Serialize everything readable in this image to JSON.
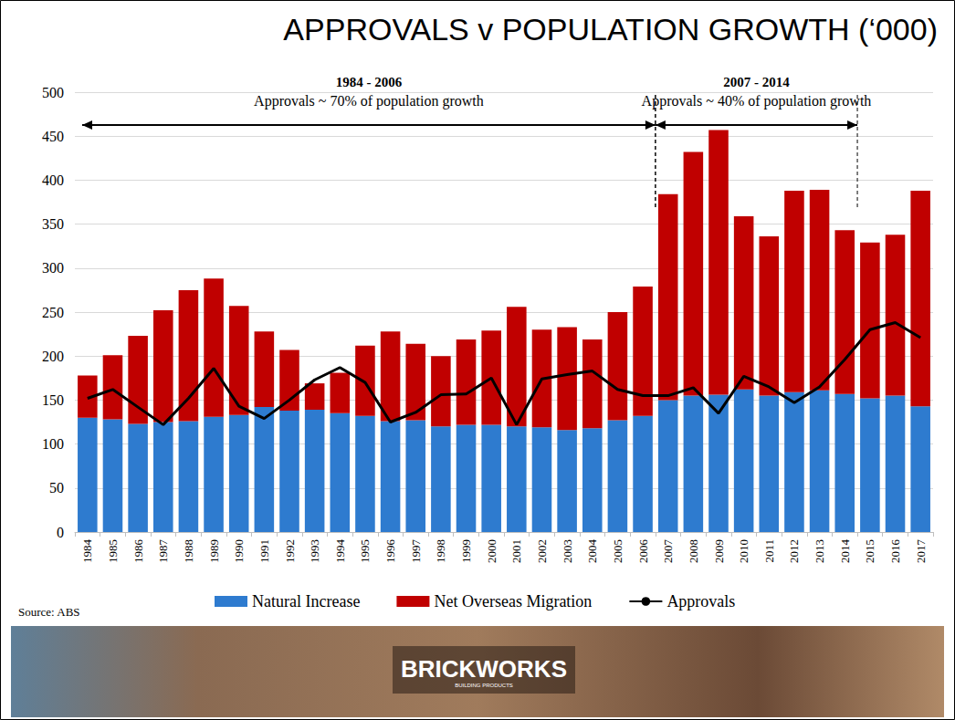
{
  "chart_data": {
    "type": "bar",
    "title": "APPROVALS v POPULATION GROWTH (‘000)",
    "categories": [
      "1984",
      "1985",
      "1986",
      "1987",
      "1988",
      "1989",
      "1990",
      "1991",
      "1992",
      "1993",
      "1994",
      "1995",
      "1996",
      "1997",
      "1998",
      "1999",
      "2000",
      "2001",
      "2002",
      "2003",
      "2004",
      "2005",
      "2006",
      "2007",
      "2008",
      "2009",
      "2010",
      "2011",
      "2012",
      "2013",
      "2014",
      "2015",
      "2016",
      "2017"
    ],
    "series": [
      {
        "name": "Natural Increase",
        "type": "bar",
        "color": "#2e7bcf",
        "values": [
          130,
          128,
          123,
          125,
          126,
          131,
          133,
          142,
          138,
          139,
          135,
          132,
          126,
          127,
          120,
          122,
          122,
          120,
          119,
          116,
          118,
          127,
          132,
          150,
          155,
          156,
          162,
          155,
          159,
          161,
          157,
          152,
          155,
          143
        ]
      },
      {
        "name": "Net Overseas Migration",
        "type": "bar",
        "color": "#c00000",
        "values": [
          48,
          73,
          100,
          127,
          149,
          157,
          124,
          86,
          69,
          30,
          46,
          80,
          102,
          87,
          80,
          97,
          107,
          136,
          111,
          117,
          101,
          123,
          147,
          234,
          277,
          301,
          197,
          181,
          229,
          228,
          186,
          177,
          183,
          245
        ]
      },
      {
        "name": "Approvals",
        "type": "line",
        "color": "#000000",
        "values": [
          152,
          162,
          142,
          122,
          152,
          186,
          143,
          129,
          150,
          173,
          187,
          170,
          125,
          136,
          156,
          157,
          175,
          122,
          174,
          179,
          183,
          162,
          155,
          155,
          164,
          135,
          177,
          165,
          147,
          165,
          196,
          230,
          238,
          221
        ]
      }
    ],
    "stacked": true,
    "ylim": [
      0,
      500
    ],
    "yticks": [
      0,
      50,
      100,
      150,
      200,
      250,
      300,
      350,
      400,
      450,
      500
    ],
    "grid": true,
    "legend": "bottom",
    "annotations": [
      {
        "title": "1984 - 2006",
        "text": "Approvals ~ 70% of population growth",
        "start": "1984",
        "end": "2006"
      },
      {
        "title": "2007 - 2014",
        "text": "Approvals ~ 40% of population growth",
        "start": "2007",
        "end": "2014"
      }
    ],
    "source": "Source: ABS",
    "logo": "BRICKWORKS",
    "logo_subtitle": "BUILDING PRODUCTS"
  }
}
